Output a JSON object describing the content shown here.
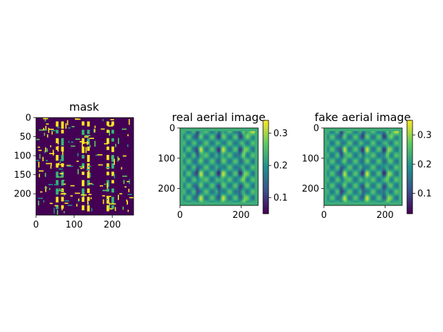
{
  "chart_data": [
    {
      "type": "heatmap",
      "title": "mask",
      "image_size": [
        256,
        256
      ],
      "xticks": [
        0,
        100,
        200
      ],
      "yticks": [
        0,
        50,
        100,
        150,
        200
      ],
      "colormap": "viridis",
      "value_range": [
        0,
        1
      ],
      "colorbar": false
    },
    {
      "type": "heatmap",
      "title": "real aerial image",
      "image_size": [
        256,
        256
      ],
      "xticks": [
        0,
        200
      ],
      "yticks": [
        0,
        100,
        200
      ],
      "colormap": "viridis",
      "value_range": [
        0.05,
        0.34
      ],
      "colorbar": true,
      "colorbar_ticks": [
        0.1,
        0.2,
        0.3
      ]
    },
    {
      "type": "heatmap",
      "title": "fake aerial image",
      "image_size": [
        256,
        256
      ],
      "xticks": [
        0,
        200
      ],
      "yticks": [
        0,
        100,
        200
      ],
      "colormap": "viridis",
      "value_range": [
        0.03,
        0.35
      ],
      "colorbar": true,
      "colorbar_ticks": [
        0.1,
        0.2,
        0.3
      ]
    }
  ],
  "colors": {
    "viridis_low": "#440154",
    "viridis_mid": "#21918c",
    "viridis_high": "#fde725"
  }
}
